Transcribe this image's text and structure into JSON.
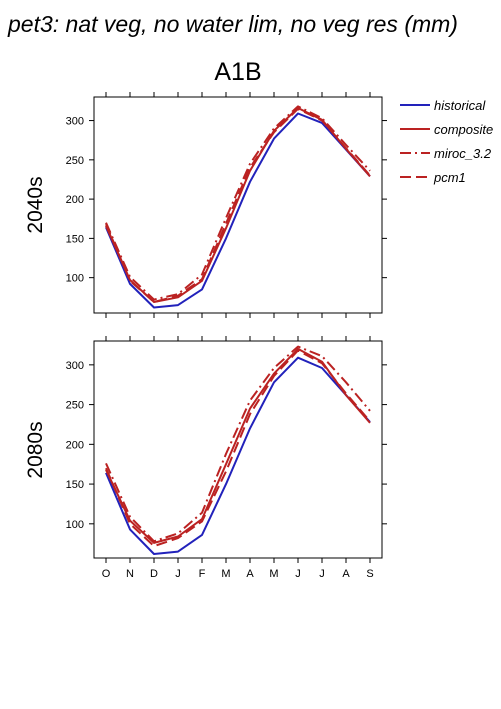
{
  "figure": {
    "title": "pet3: nat veg, no water lim, no veg res (mm)",
    "scenario": "A1B"
  },
  "legend": [
    {
      "name": "historical",
      "color": "#2222bb",
      "dash": "solid"
    },
    {
      "name": "composite",
      "color": "#bb2222",
      "dash": "solid"
    },
    {
      "name": "miroc_3.2",
      "color": "#bb2222",
      "dash": "dashdot"
    },
    {
      "name": "pcm1",
      "color": "#bb2222",
      "dash": "dash"
    }
  ],
  "chart_data": [
    {
      "type": "line",
      "panel": "2040s",
      "row_label": "2040s",
      "categories": [
        "O",
        "N",
        "D",
        "J",
        "F",
        "M",
        "A",
        "M",
        "J",
        "J",
        "A",
        "S"
      ],
      "ylim": [
        55,
        330
      ],
      "yticks": [
        100,
        150,
        200,
        250,
        300
      ],
      "grid": false,
      "series": [
        {
          "name": "historical",
          "values": [
            164,
            92,
            62,
            65,
            85,
            150,
            222,
            277,
            309,
            297,
            263,
            229
          ]
        },
        {
          "name": "composite",
          "values": [
            166,
            97,
            69,
            75,
            96,
            163,
            236,
            287,
            316,
            301,
            264,
            229
          ]
        },
        {
          "name": "miroc_3.2",
          "values": [
            170,
            101,
            72,
            79,
            104,
            176,
            245,
            290,
            318,
            303,
            269,
            236
          ]
        },
        {
          "name": "pcm1",
          "values": [
            168,
            96,
            69,
            77,
            98,
            169,
            240,
            285,
            315,
            300,
            265,
            230
          ]
        }
      ]
    },
    {
      "type": "line",
      "panel": "2080s",
      "row_label": "2080s",
      "categories": [
        "O",
        "N",
        "D",
        "J",
        "F",
        "M",
        "A",
        "M",
        "J",
        "J",
        "A",
        "S"
      ],
      "ylim": [
        57,
        330
      ],
      "yticks": [
        100,
        150,
        200,
        250,
        300
      ],
      "grid": false,
      "series": [
        {
          "name": "historical",
          "values": [
            164,
            93,
            62,
            65,
            86,
            150,
            220,
            278,
            309,
            296,
            262,
            228
          ]
        },
        {
          "name": "composite",
          "values": [
            168,
            104,
            76,
            84,
            106,
            175,
            245,
            289,
            320,
            304,
            262,
            227
          ]
        },
        {
          "name": "miroc_3.2",
          "values": [
            176,
            109,
            78,
            88,
            114,
            188,
            255,
            296,
            323,
            311,
            278,
            242
          ]
        },
        {
          "name": "pcm1",
          "values": [
            170,
            100,
            72,
            82,
            103,
            166,
            238,
            286,
            318,
            302,
            264,
            229
          ]
        }
      ]
    }
  ]
}
